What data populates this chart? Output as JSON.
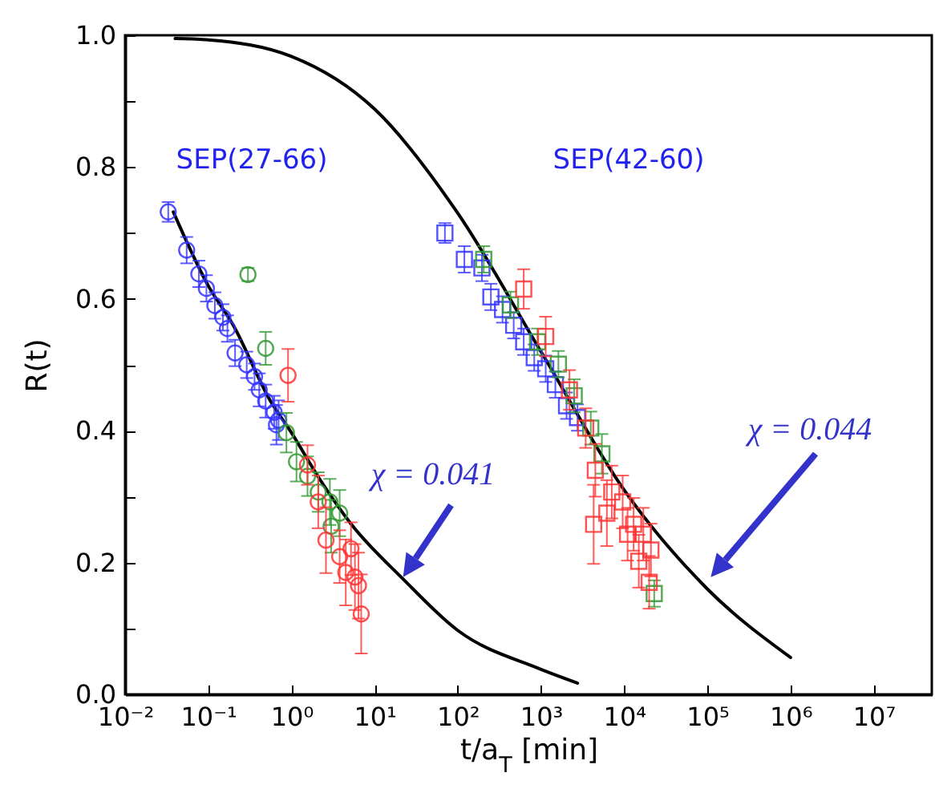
{
  "chart_data": {
    "type": "scatter",
    "xlabel": "t/a$_{T}$  [min]",
    "ylabel": "R(t)",
    "log": "x",
    "xlim": [
      0.01,
      50000000
    ],
    "ylim": [
      0,
      1
    ],
    "xticks": [
      {
        "value": 0.01,
        "label": "10⁻²"
      },
      {
        "value": 0.1,
        "label": "10⁻¹"
      },
      {
        "value": 1,
        "label": "10⁰"
      },
      {
        "value": 10,
        "label": "10¹"
      },
      {
        "value": 100,
        "label": "10²"
      },
      {
        "value": 1000,
        "label": "10³"
      },
      {
        "value": 10000,
        "label": "10⁴"
      },
      {
        "value": 100000,
        "label": "10⁵"
      },
      {
        "value": 1000000,
        "label": "10⁶"
      },
      {
        "value": 10000000,
        "label": "10⁷"
      }
    ],
    "yticks": [
      {
        "value": 0,
        "label": "0.0"
      },
      {
        "value": 0.1,
        "label": null
      },
      0.2,
      {
        "value": 0.3,
        "label": null
      },
      0.4,
      {
        "value": 0.5,
        "label": null
      },
      0.6,
      {
        "value": 0.7,
        "label": null
      },
      0.8,
      {
        "value": 0.9,
        "label": null
      },
      {
        "value": 1,
        "label": "1.0"
      }
    ],
    "annotations": [
      "SEP(27-66)",
      "SEP(42-60)",
      "χ = 0.041",
      "χ = 0.044"
    ],
    "series": [
      {
        "type": "line",
        "color": "#000000",
        "marker": "none",
        "line_style": "solid",
        "x": [
          0.038,
          0.1,
          0.2,
          0.56,
          1,
          2.1,
          5.1,
          22,
          100,
          950,
          2750
        ],
        "values": [
          0.732,
          0.62,
          0.56,
          0.445,
          0.397,
          0.33,
          0.26,
          0.175,
          0.097,
          0.039,
          0.017
        ]
      },
      {
        "type": "line",
        "color": "#000000",
        "marker": "none",
        "line_style": "solid",
        "x": [
          0.04,
          0.1,
          1,
          10,
          100,
          1000,
          10000,
          100000,
          1000000
        ],
        "values": [
          0.995,
          0.993,
          0.968,
          0.888,
          0.73,
          0.52,
          0.31,
          0.16,
          0.056
        ]
      },
      {
        "color": "#3333ff",
        "marker": "circle",
        "x": [
          0.033,
          0.055,
          0.077,
          0.095,
          0.12,
          0.15,
          0.17,
          0.21,
          0.29,
          0.36,
          0.41,
          0.49,
          0.62,
          0.7,
          0.66
        ],
        "values": [
          0.732,
          0.674,
          0.638,
          0.616,
          0.59,
          0.572,
          0.555,
          0.518,
          0.5,
          0.482,
          0.462,
          0.445,
          0.428,
          0.416,
          0.409
        ],
        "errors": [
          0.015,
          0.02,
          0.02,
          0.02,
          0.02,
          0.02,
          0.02,
          0.02,
          0.02,
          0.02,
          0.025,
          0.025,
          0.025,
          0.03,
          0.03
        ]
      },
      {
        "color": "#339933",
        "marker": "circle",
        "x": [
          0.3,
          0.49,
          0.87,
          1.15,
          1.56,
          2.1,
          2.9,
          3.8,
          3
        ],
        "values": [
          0.637,
          0.525,
          0.397,
          0.353,
          0.331,
          0.307,
          0.292,
          0.275,
          0.255
        ],
        "errors": [
          0.01,
          0.025,
          0.03,
          0.03,
          0.03,
          0.03,
          0.035,
          0.035,
          0.04
        ]
      },
      {
        "color": "#ff3333",
        "marker": "circle",
        "x": [
          0.91,
          1.56,
          2.1,
          2.6,
          3.8,
          4.5,
          5.2,
          5.8,
          6.4,
          6.9
        ],
        "values": [
          0.484,
          0.348,
          0.292,
          0.234,
          0.209,
          0.185,
          0.221,
          0.178,
          0.165,
          0.122
        ],
        "errors": [
          0.04,
          0.03,
          0.04,
          0.05,
          0.04,
          0.05,
          0.04,
          0.05,
          0.05,
          0.06
        ]
      },
      {
        "color": "#3333ff",
        "marker": "square",
        "x": [
          70,
          120,
          195,
          250,
          345,
          470,
          620,
          830,
          1140,
          1490,
          2030,
          2750
        ],
        "values": [
          0.7,
          0.66,
          0.647,
          0.603,
          0.584,
          0.56,
          0.535,
          0.511,
          0.494,
          0.47,
          0.438,
          0.42
        ],
        "errors": [
          0.015,
          0.02,
          0.02,
          0.02,
          0.02,
          0.02,
          0.02,
          0.02,
          0.02,
          0.02,
          0.02,
          0.02
        ]
      },
      {
        "color": "#339933",
        "marker": "square",
        "x": [
          205,
          430,
          910,
          1620,
          2510,
          3970,
          5400,
          23000
        ],
        "values": [
          0.66,
          0.591,
          0.535,
          0.501,
          0.453,
          0.404,
          0.365,
          0.153
        ],
        "errors": [
          0.02,
          0.02,
          0.02,
          0.02,
          0.025,
          0.025,
          0.03,
          0.02
        ]
      },
      {
        "color": "#ff3333",
        "marker": "square",
        "x": [
          620,
          1140,
          2200,
          3450,
          4500,
          7100,
          9600,
          13000,
          17000,
          21000,
          11000,
          15000,
          20000,
          6200,
          4300
        ],
        "values": [
          0.615,
          0.543,
          0.462,
          0.404,
          0.34,
          0.307,
          0.292,
          0.258,
          0.243,
          0.219,
          0.243,
          0.202,
          0.17,
          0.275,
          0.258
        ],
        "errors": [
          0.03,
          0.03,
          0.03,
          0.03,
          0.04,
          0.04,
          0.04,
          0.04,
          0.04,
          0.04,
          0.04,
          0.04,
          0.04,
          0.05,
          0.06
        ]
      }
    ]
  }
}
